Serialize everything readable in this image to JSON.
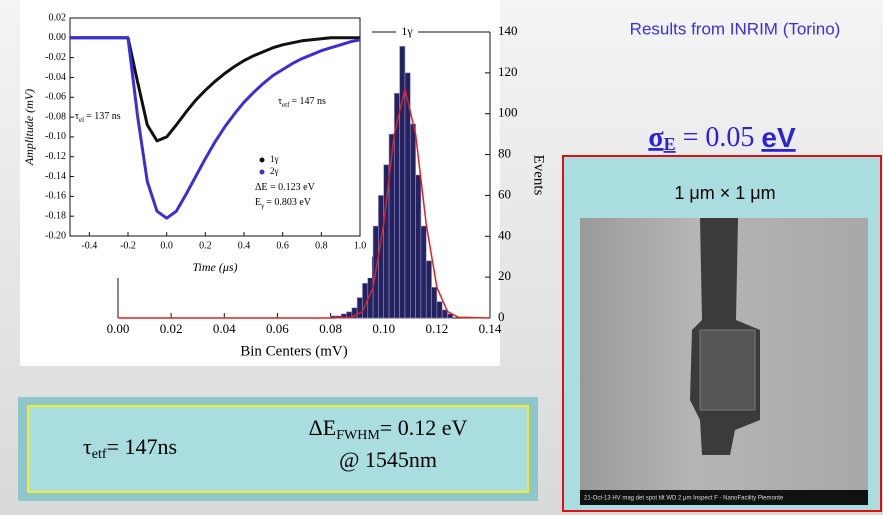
{
  "chart_data": [
    {
      "type": "histogram",
      "xlabel": "Bin Centers (mV)",
      "ylabel": "Events",
      "annotation": "1γ",
      "bins": [
        0.08,
        0.082,
        0.084,
        0.086,
        0.088,
        0.09,
        0.092,
        0.094,
        0.096,
        0.098,
        0.1,
        0.102,
        0.104,
        0.106,
        0.108,
        0.11,
        0.112,
        0.114,
        0.116,
        0.118,
        0.12,
        0.122,
        0.124,
        0.126
      ],
      "values": [
        1,
        1,
        2,
        3,
        5,
        10,
        17,
        30,
        45,
        60,
        75,
        90,
        110,
        133,
        120,
        95,
        70,
        45,
        28,
        15,
        8,
        4,
        2
      ],
      "color": "#24235e",
      "lines": [
        {
          "color": "#e02020",
          "x": [
            0.0,
            0.08,
            0.088,
            0.092,
            0.096,
            0.1,
            0.104,
            0.108,
            0.112,
            0.116,
            0.12,
            0.124,
            0.128,
            0.14
          ],
          "values": [
            0,
            0,
            0.4,
            3.2,
            15,
            46,
            90,
            112,
            90,
            46,
            15,
            3.2,
            0.4,
            0
          ]
        }
      ],
      "xlim": [
        0,
        0.14
      ],
      "xticks": [
        {
          "value": 0,
          "label": "0.00"
        },
        0.02,
        0.04,
        0.06,
        0.08,
        {
          "value": 0.1,
          "label": "0.10"
        },
        0.12,
        0.14
      ],
      "ylim": [
        0,
        140
      ],
      "yticks": [
        0,
        20,
        40,
        60,
        80,
        100,
        120,
        140
      ]
    },
    {
      "type": "line",
      "xlabel": "Time (μs)",
      "ylabel": "Amplitude (mV)",
      "x": [
        -0.5,
        -0.45,
        -0.4,
        -0.35,
        -0.3,
        -0.25,
        -0.2,
        -0.15,
        -0.1,
        -0.05,
        0,
        0.05,
        0.1,
        0.15,
        0.2,
        0.25,
        0.3,
        0.35,
        0.4,
        0.45,
        0.5,
        0.55,
        0.6,
        0.65,
        0.7,
        0.75,
        0.8,
        0.85,
        0.9,
        0.95,
        1.0
      ],
      "series": [
        {
          "name": "1γ",
          "color": "#111111",
          "values": [
            0,
            0,
            0,
            0,
            0,
            0,
            0,
            -0.045,
            -0.088,
            -0.104,
            -0.1,
            -0.088,
            -0.075,
            -0.063,
            -0.053,
            -0.044,
            -0.036,
            -0.029,
            -0.023,
            -0.018,
            -0.014,
            -0.01,
            -0.007,
            -0.005,
            -0.003,
            -0.002,
            -0.001,
            0,
            0,
            0,
            0
          ]
        },
        {
          "name": "2γ",
          "color": "#3a2fd6",
          "values": [
            0,
            0,
            0,
            0,
            0,
            0,
            0,
            -0.08,
            -0.145,
            -0.175,
            -0.182,
            -0.175,
            -0.158,
            -0.14,
            -0.122,
            -0.105,
            -0.09,
            -0.077,
            -0.065,
            -0.055,
            -0.046,
            -0.038,
            -0.032,
            -0.026,
            -0.021,
            -0.017,
            -0.013,
            -0.01,
            -0.007,
            -0.004,
            -0.002
          ]
        }
      ],
      "annotations": [
        {
          "symbol": "τ",
          "sub": "el",
          "rest": "= 137 ns"
        },
        {
          "symbol": "τ",
          "sub": "etf",
          "rest": "= 147 ns"
        },
        {
          "symbol": "ΔE = 0.123 eV"
        },
        {
          "symbol": "E",
          "sub": "γ",
          "rest": "= 0.803 eV"
        }
      ],
      "xlim": [
        -0.5,
        1.0
      ],
      "xticks": [
        -0.4,
        -0.2,
        {
          "value": 0,
          "label": "0.0"
        },
        0.2,
        0.4,
        0.6,
        0.8,
        {
          "value": 1,
          "label": "1.0"
        }
      ],
      "ylim": [
        -0.2,
        0.02
      ],
      "yticks": [
        0.02,
        {
          "value": 0,
          "label": "0.00"
        },
        -0.02,
        -0.04,
        -0.06,
        -0.08,
        {
          "value": -0.1,
          "label": "-0.10"
        },
        -0.12,
        -0.14,
        -0.16,
        -0.18,
        {
          "value": -0.2,
          "label": "-0.20"
        }
      ]
    }
  ],
  "slide": {
    "heading": "Results from INRIM (Torino)",
    "sigma": {
      "symbol": "σ",
      "sub": "E",
      "rest": " = 0.05 ",
      "unit": "eV"
    },
    "scale_label": "1 μm × 1 μm",
    "sem_caption": "21-Oct-13  HV  mag  det  spot  tilt  WD  2 μm  Inspect F - NanoFacility Piemonte",
    "box": {
      "tau": {
        "symbol": "τ",
        "sub": "etf",
        "rest": "= 147ns"
      },
      "energy": {
        "symbol": "ΔE",
        "sub": "FWHM",
        "rest": "= 0.12 eV"
      },
      "wavelength": "@ 1545nm"
    }
  }
}
